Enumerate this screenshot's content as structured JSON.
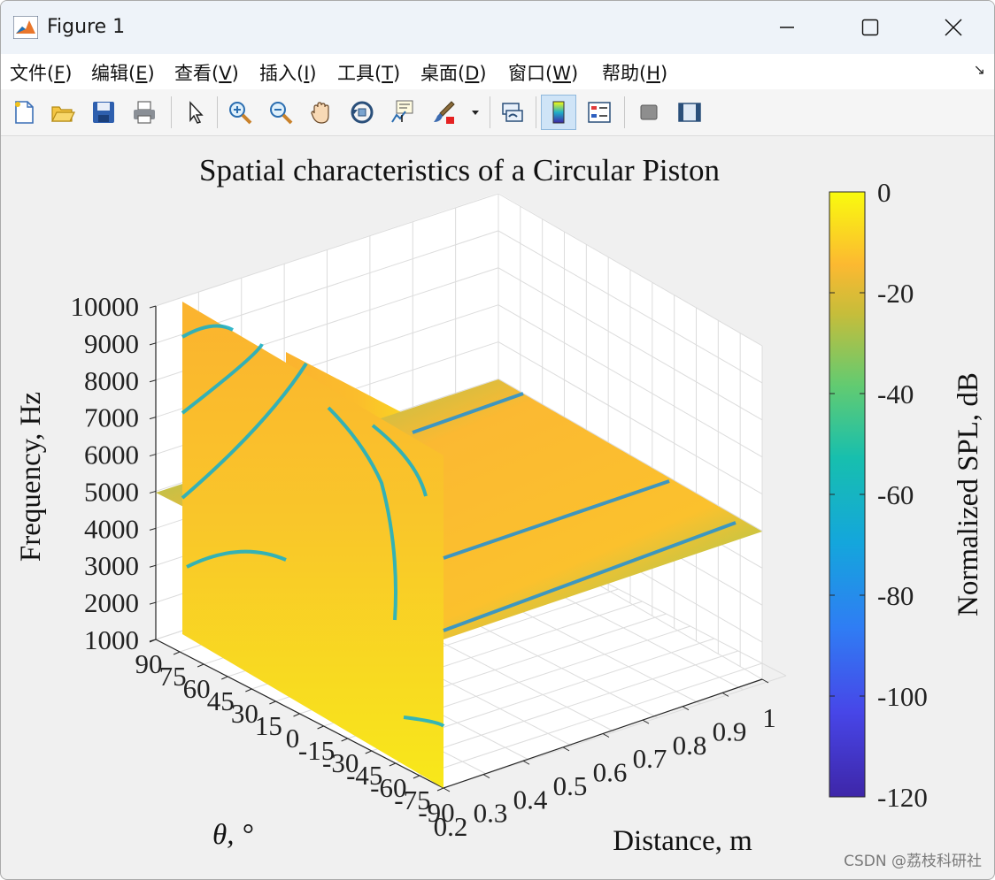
{
  "window": {
    "title": "Figure 1",
    "controls": {
      "minimize": "minimize",
      "maximize": "maximize",
      "close": "close"
    }
  },
  "menu": [
    {
      "label": "文件(",
      "key": "F",
      "tail": ")"
    },
    {
      "label": "编辑(",
      "key": "E",
      "tail": ")"
    },
    {
      "label": "查看(",
      "key": "V",
      "tail": ")"
    },
    {
      "label": "插入(",
      "key": "I",
      "tail": ")"
    },
    {
      "label": "工具(",
      "key": "T",
      "tail": ")"
    },
    {
      "label": "桌面(",
      "key": "D",
      "tail": ")"
    },
    {
      "label": "窗口(",
      "key": "W",
      "tail": ")"
    },
    {
      "label": "帮助(",
      "key": "H",
      "tail": ")"
    }
  ],
  "toolbar": [
    "new-figure-icon",
    "open-file-icon",
    "save-icon",
    "print-icon",
    "pointer-icon",
    "zoom-in-icon",
    "zoom-out-icon",
    "pan-icon",
    "rotate-3d-icon",
    "data-cursor-icon",
    "brush-icon",
    "brush-dropdown-icon",
    "link-plot-icon",
    "colorbar-icon",
    "legend-icon",
    "hide-plot-tools-icon",
    "show-plot-tools-icon"
  ],
  "watermark": "CSDN @荔枝科研社",
  "chart_data": {
    "type": "heatmap",
    "title": "Spatial characteristics of a Circular Piston",
    "xlabel": "Distance, m",
    "ylabel": "θ, °",
    "zlabel": "Frequency, Hz",
    "colorbar_label": "Normalized SPL, dB",
    "x_ticks": [
      0.2,
      0.3,
      0.4,
      0.5,
      0.6,
      0.7,
      0.8,
      0.9,
      1
    ],
    "y_ticks": [
      90,
      75,
      60,
      45,
      30,
      15,
      0,
      -15,
      -30,
      -45,
      -60,
      -75,
      -90
    ],
    "z_ticks": [
      1000,
      2000,
      3000,
      4000,
      5000,
      6000,
      7000,
      8000,
      9000,
      10000
    ],
    "colorbar_ticks": [
      0,
      -20,
      -40,
      -60,
      -80,
      -100,
      -120
    ],
    "xlim": [
      0.2,
      1
    ],
    "ylim": [
      -90,
      90
    ],
    "zlim": [
      1000,
      10000
    ],
    "clim": [
      -120,
      0
    ],
    "colormap": "parula",
    "grid": true,
    "slices": [
      {
        "plane": "distance",
        "value": 0.2
      },
      {
        "plane": "theta",
        "value": 0
      },
      {
        "plane": "frequency",
        "value": 5000
      }
    ]
  }
}
